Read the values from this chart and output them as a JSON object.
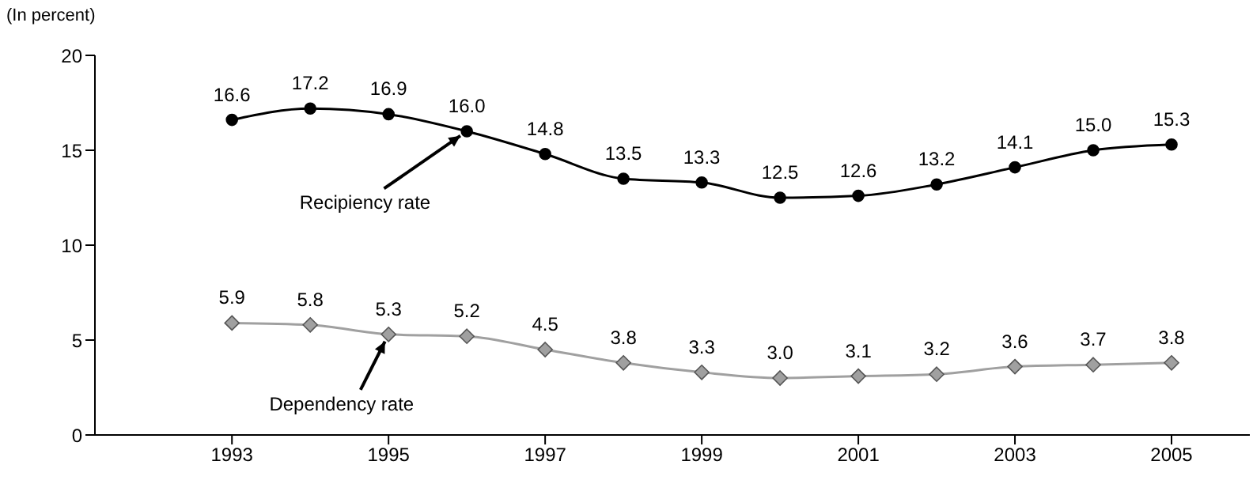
{
  "chart_data": {
    "type": "line",
    "ylabel": "(In percent)",
    "x": [
      1993,
      1994,
      1995,
      1996,
      1997,
      1998,
      1999,
      2000,
      2001,
      2002,
      2003,
      2004,
      2005
    ],
    "xlim": [
      1991.25,
      2006
    ],
    "xticks": [
      1993,
      1995,
      1997,
      1999,
      2001,
      2003,
      2005
    ],
    "ylim": [
      0,
      20
    ],
    "yticks": [
      0,
      5,
      10,
      15,
      20
    ],
    "series": [
      {
        "name": "Recipiency rate",
        "color": "#000000",
        "marker": "circle",
        "values": [
          16.6,
          17.2,
          16.9,
          16.0,
          14.8,
          13.5,
          13.3,
          12.5,
          12.6,
          13.2,
          14.1,
          15.0,
          15.3
        ],
        "value_labels": [
          "16.6",
          "17.2",
          "16.9",
          "16.0",
          "14.8",
          "13.5",
          "13.3",
          "12.5",
          "12.6",
          "13.2",
          "14.1",
          "15.0",
          "15.3"
        ]
      },
      {
        "name": "Dependency rate",
        "color": "#a0a0a0",
        "marker": "diamond",
        "values": [
          5.9,
          5.8,
          5.3,
          5.2,
          4.5,
          3.8,
          3.3,
          3.0,
          3.1,
          3.2,
          3.6,
          3.7,
          3.8
        ],
        "value_labels": [
          "5.9",
          "5.8",
          "5.3",
          "5.2",
          "4.5",
          "3.8",
          "3.3",
          "3.0",
          "3.1",
          "3.2",
          "3.6",
          "3.7",
          "3.8"
        ]
      }
    ]
  }
}
